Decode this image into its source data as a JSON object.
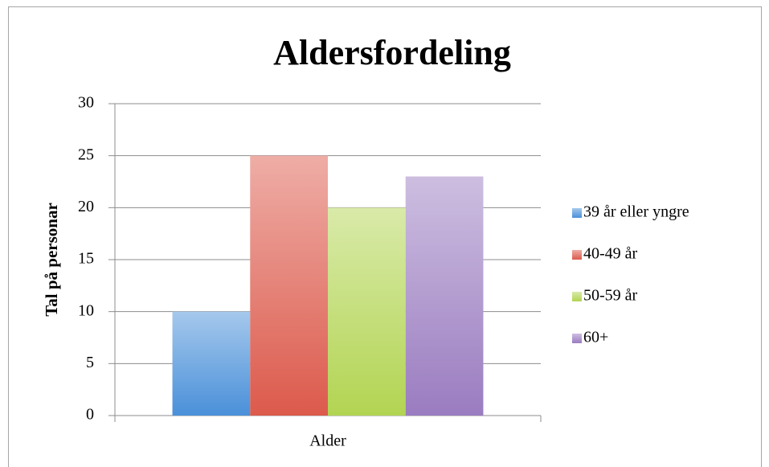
{
  "chart_data": {
    "type": "bar",
    "title": "Aldersfordeling",
    "y_label": "Tal på personar",
    "categories": [
      "Alder"
    ],
    "series": [
      {
        "name": "39 år eller yngre",
        "color": "#4a90d9",
        "values": [
          10
        ]
      },
      {
        "name": "40-49 år",
        "color": "#dc5a4c",
        "values": [
          25
        ]
      },
      {
        "name": "50-59 år",
        "color": "#b2d452",
        "values": [
          20
        ]
      },
      {
        "name": "60+",
        "color": "#9a7cc0",
        "values": [
          23
        ]
      }
    ],
    "ylim": [
      0,
      30
    ],
    "yticks": [
      0,
      5,
      10,
      15,
      20,
      25,
      30
    ],
    "grid": true,
    "legend": "right"
  }
}
